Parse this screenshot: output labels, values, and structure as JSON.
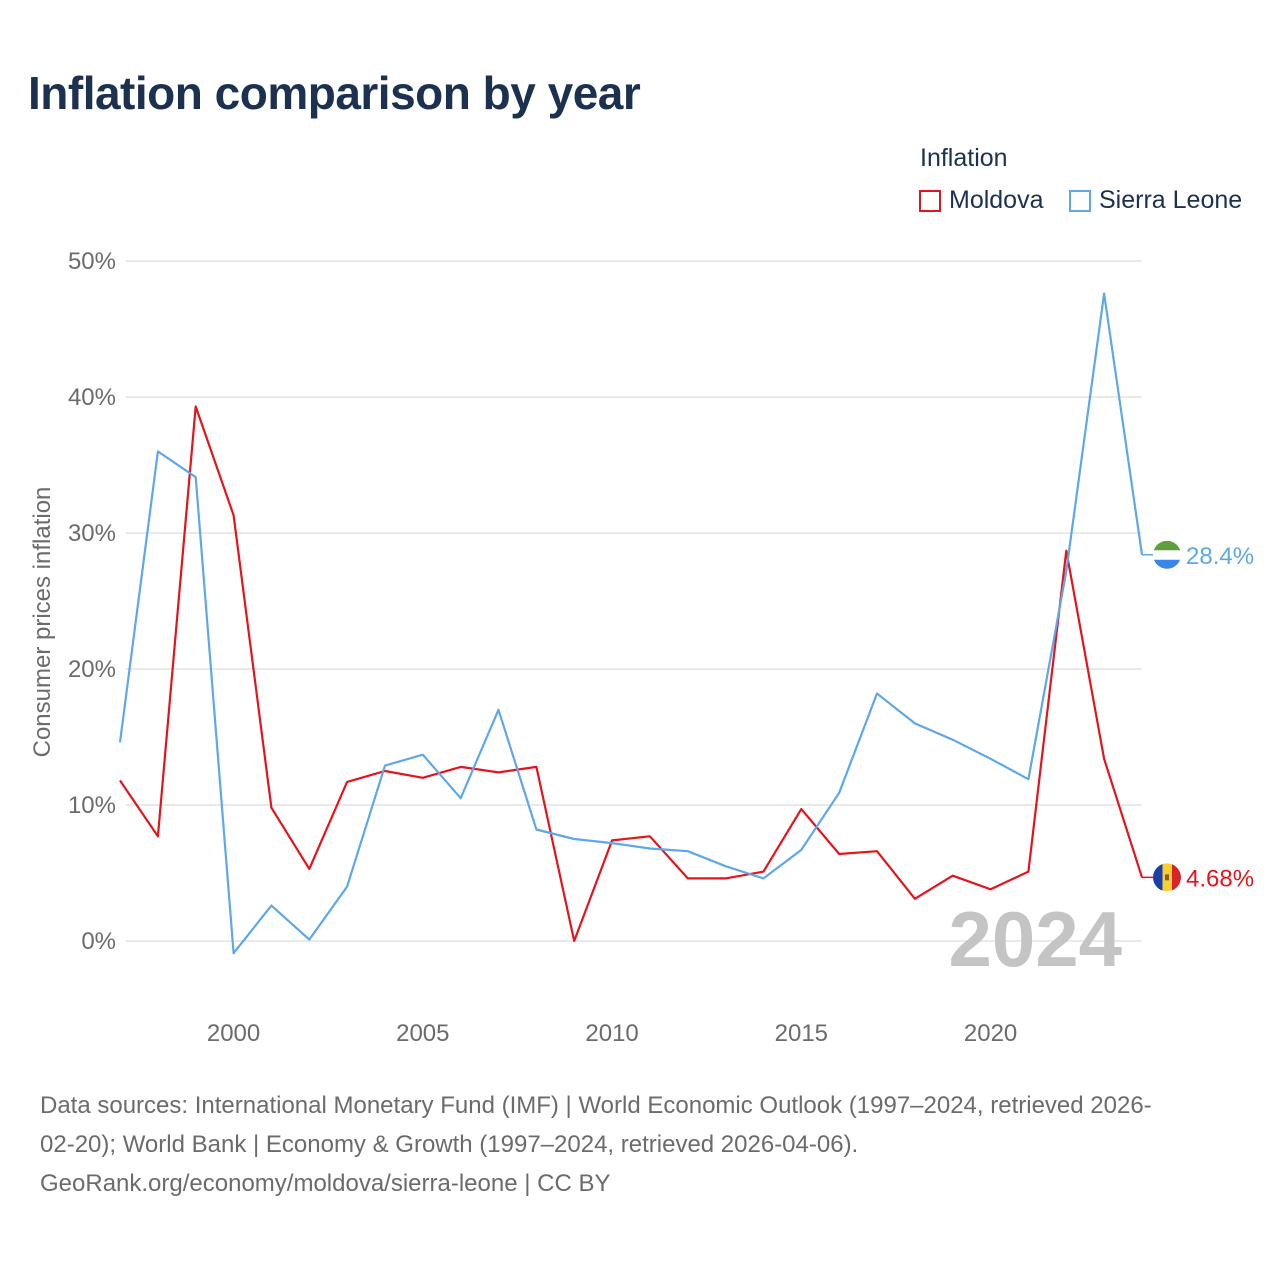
{
  "title": "Inflation comparison by year",
  "legend": {
    "title": "Inflation",
    "items": [
      {
        "name": "Moldova",
        "color": "#e3141b"
      },
      {
        "name": "Sierra Leone",
        "color": "#5ea7e8"
      }
    ]
  },
  "chart_data": {
    "type": "line",
    "title": "Inflation comparison by year",
    "ylabel": "Consumer prices inflation",
    "xlabel": "",
    "xlim": [
      1997,
      2024
    ],
    "ylim": [
      -4,
      52
    ],
    "y_ticks": [
      0,
      10,
      20,
      30,
      40,
      50
    ],
    "y_tick_labels": [
      "0%",
      "10%",
      "20%",
      "30%",
      "40%",
      "50%"
    ],
    "x_ticks": [
      2000,
      2005,
      2010,
      2015,
      2020
    ],
    "x_tick_labels": [
      "2000",
      "2005",
      "2010",
      "2015",
      "2020"
    ],
    "grid": true,
    "year_watermark": "2024",
    "x": [
      1997,
      1998,
      1999,
      2000,
      2001,
      2002,
      2003,
      2004,
      2005,
      2006,
      2007,
      2008,
      2009,
      2010,
      2011,
      2012,
      2013,
      2014,
      2015,
      2016,
      2017,
      2018,
      2019,
      2020,
      2021,
      2022,
      2023,
      2024
    ],
    "series": [
      {
        "name": "Moldova",
        "color": "#e3141b",
        "end_label": "4.68%",
        "flag": "moldova-flag",
        "values": [
          11.8,
          7.7,
          39.3,
          31.3,
          9.8,
          5.3,
          11.7,
          12.5,
          12.0,
          12.8,
          12.4,
          12.8,
          0.0,
          7.4,
          7.7,
          4.6,
          4.6,
          5.1,
          9.7,
          6.4,
          6.6,
          3.1,
          4.8,
          3.8,
          5.1,
          28.7,
          13.4,
          4.68
        ]
      },
      {
        "name": "Sierra Leone",
        "color": "#5ea7e8",
        "end_label": "28.4%",
        "flag": "sierra-leone-flag",
        "values": [
          14.6,
          36.0,
          34.1,
          -0.9,
          2.6,
          0.1,
          4.0,
          12.9,
          13.7,
          10.5,
          17.0,
          8.2,
          7.5,
          7.2,
          6.8,
          6.6,
          5.5,
          4.6,
          6.7,
          10.9,
          18.2,
          16.0,
          14.8,
          13.4,
          11.9,
          27.2,
          47.6,
          28.4
        ]
      }
    ]
  },
  "footer": {
    "line1": "Data sources: International Monetary Fund (IMF) | World Economic Outlook (1997–2024, retrieved 2026-",
    "line2": "02-20); World Bank | Economy & Growth (1997–2024, retrieved 2026-04-06).",
    "line3": "GeoRank.org/economy/moldova/sierra-leone | CC BY"
  }
}
